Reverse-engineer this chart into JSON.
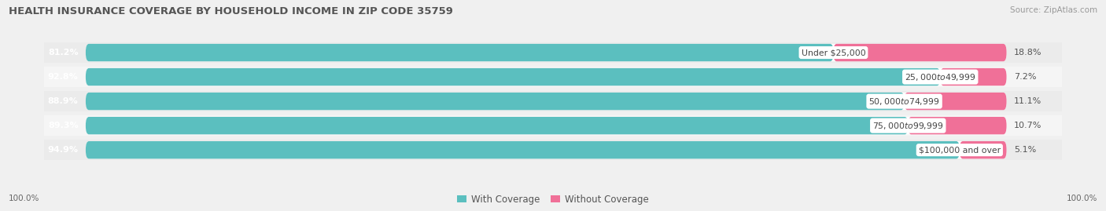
{
  "title": "HEALTH INSURANCE COVERAGE BY HOUSEHOLD INCOME IN ZIP CODE 35759",
  "source": "Source: ZipAtlas.com",
  "categories": [
    "Under $25,000",
    "$25,000 to $49,999",
    "$50,000 to $74,999",
    "$75,000 to $99,999",
    "$100,000 and over"
  ],
  "with_coverage": [
    81.2,
    92.8,
    88.9,
    89.3,
    94.9
  ],
  "without_coverage": [
    18.8,
    7.2,
    11.1,
    10.7,
    5.1
  ],
  "color_with": "#5BBFBF",
  "color_without": "#F07098",
  "bg_color": "#F0F0F0",
  "bar_bg": "#FFFFFF",
  "row_bg_even": "#EBEBEB",
  "row_bg_odd": "#F5F5F5",
  "label_pct": "100.0%",
  "figsize": [
    14.06,
    2.69
  ],
  "dpi": 100
}
